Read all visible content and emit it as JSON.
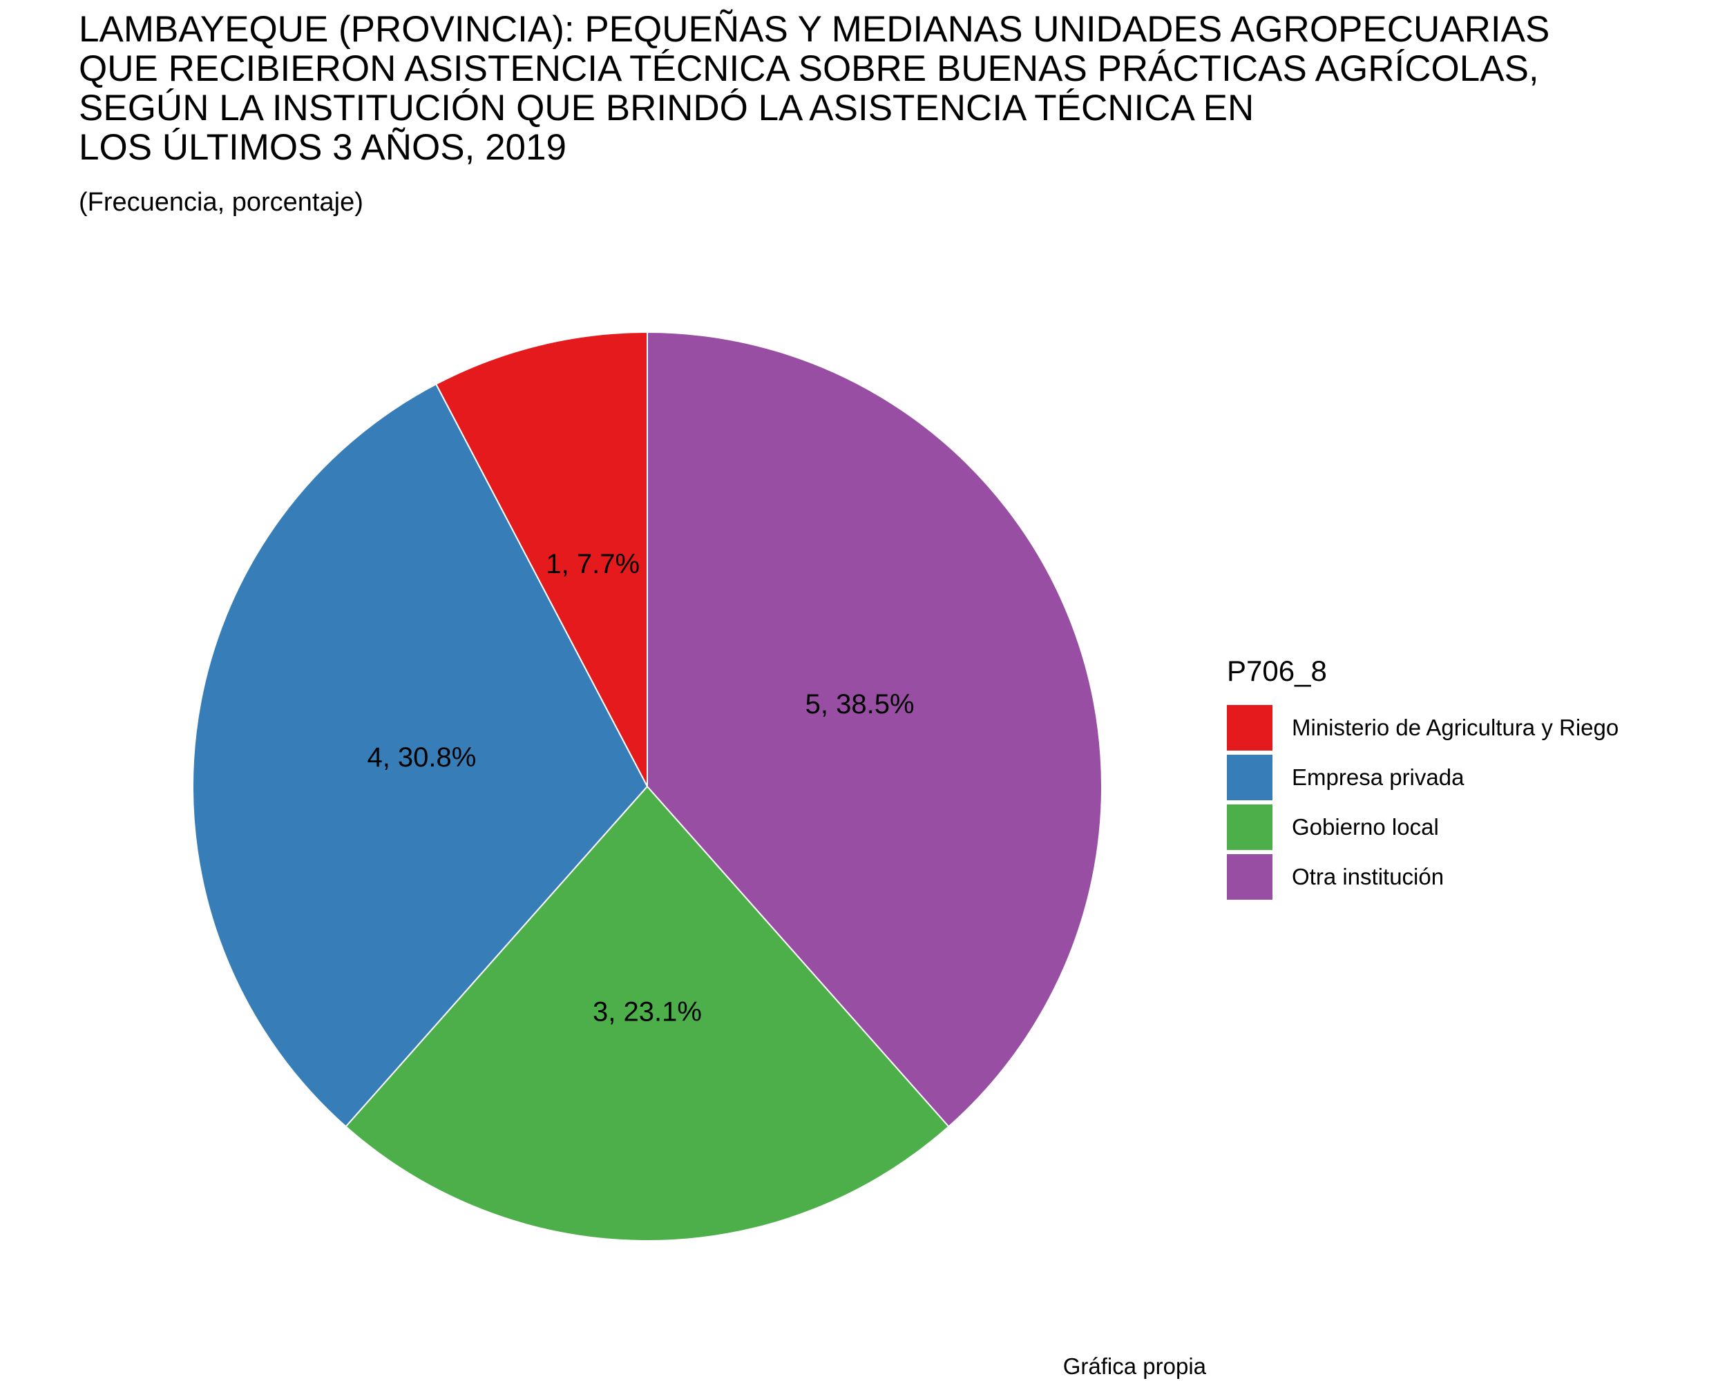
{
  "title_lines": [
    "LAMBAYEQUE (PROVINCIA): PEQUEÑAS Y MEDIANAS UNIDADES AGROPECUARIAS",
    "QUE RECIBIERON ASISTENCIA TÉCNICA SOBRE BUENAS PRÁCTICAS AGRÍCOLAS,",
    "SEGÚN LA INSTITUCIÓN QUE BRINDÓ LA ASISTENCIA TÉCNICA EN",
    "LOS ÚLTIMOS 3 AÑOS, 2019"
  ],
  "subtitle": "(Frecuencia, porcentaje)",
  "caption": "Gráfica propia",
  "chart_data": {
    "type": "pie",
    "title": "LAMBAYEQUE (PROVINCIA): PEQUEÑAS Y MEDIANAS UNIDADES AGROPECUARIAS QUE RECIBIERON ASISTENCIA TÉCNICA SOBRE BUENAS PRÁCTICAS AGRÍCOLAS, SEGÚN LA INSTITUCIÓN QUE BRINDÓ LA ASISTENCIA TÉCNICA EN LOS ÚLTIMOS 3 AÑOS, 2019",
    "subtitle": "(Frecuencia, porcentaje)",
    "legend_title": "P706_8",
    "legend_position": "right",
    "slices": [
      {
        "label": "Ministerio de Agricultura y Riego",
        "value": 1,
        "percent": 7.7,
        "data_label": "1, 7.7%",
        "color": "#E41A1C"
      },
      {
        "label": "Empresa privada",
        "value": 4,
        "percent": 30.8,
        "data_label": "4, 30.8%",
        "color": "#377EB8"
      },
      {
        "label": "Gobierno local",
        "value": 3,
        "percent": 23.1,
        "data_label": "3, 23.1%",
        "color": "#4DAF4A"
      },
      {
        "label": "Otra institución",
        "value": 5,
        "percent": 38.5,
        "data_label": "5, 38.5%",
        "color": "#984EA3"
      }
    ]
  }
}
